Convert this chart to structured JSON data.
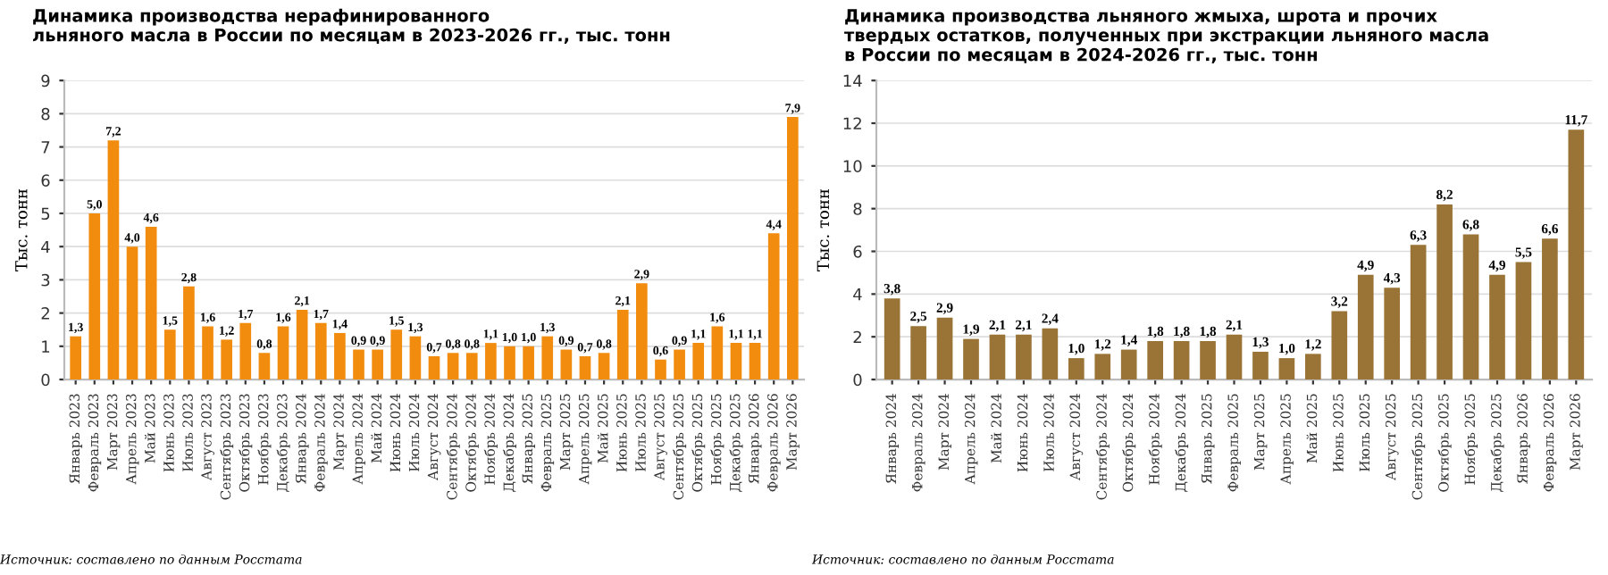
{
  "chart_data": [
    {
      "type": "bar",
      "title": "Динамика производства нерафинированного\nльняного масла в России по месяцам в 2023-2026 гг., тыс. тонн",
      "ylabel": "Тыс. тонн",
      "categories": [
        "Январь 2023",
        "Февраль 2023",
        "Март 2023",
        "Апрель 2023",
        "Май 2023",
        "Июнь 2023",
        "Июль 2023",
        "Август 2023",
        "Сентябрь 2023",
        "Октябрь 2023",
        "Ноябрь 2023",
        "Декабрь 2023",
        "Январь 2024",
        "Февраль 2024",
        "Март 2024",
        "Апрель 2024",
        "Май 2024",
        "Июнь 2024",
        "Июль 2024",
        "Август 2024",
        "Сентябрь 2024",
        "Октябрь 2024",
        "Ноябрь 2024",
        "Декабрь 2024",
        "Январь 2025",
        "Февраль 2025",
        "Март 2025",
        "Апрель 2025",
        "Май 2025",
        "Июнь 2025",
        "Июль 2025",
        "Август 2025",
        "Сентябрь 2025",
        "Октябрь 2025",
        "Ноябрь 2025",
        "Декабрь 2025",
        "Январь 2026",
        "Февраль 2026",
        "Март 2026"
      ],
      "values": [
        1.3,
        5.0,
        7.2,
        4.0,
        4.6,
        1.5,
        2.8,
        1.6,
        1.2,
        1.7,
        0.8,
        1.6,
        2.1,
        1.7,
        1.4,
        0.9,
        0.9,
        1.5,
        1.3,
        0.7,
        0.8,
        0.8,
        1.1,
        1.0,
        1.0,
        1.3,
        0.9,
        0.7,
        0.8,
        2.1,
        2.9,
        0.6,
        0.9,
        1.1,
        1.6,
        1.1,
        1.1,
        4.4,
        7.9
      ],
      "value_labels": [
        "1,3",
        "5,0",
        "7,2",
        "4,0",
        "4,6",
        "1,5",
        "2,8",
        "1,6",
        "1,2",
        "1,7",
        "0,8",
        "1,6",
        "2,1",
        "1,7",
        "1,4",
        "0,9",
        "0,9",
        "1,5",
        "1,3",
        "0,7",
        "0,8",
        "0,8",
        "1,1",
        "1,0",
        "1,0",
        "1,3",
        "0,9",
        "0,7",
        "0,8",
        "2,1",
        "2,9",
        "0,6",
        "0,9",
        "1,1",
        "1,6",
        "1,1",
        "1,1",
        "4,4",
        "7,9"
      ],
      "color": "#f28c0f",
      "ylim": [
        0,
        9
      ],
      "yticks": [
        0,
        1,
        2,
        3,
        4,
        5,
        6,
        7,
        8,
        9
      ],
      "grid": "y",
      "annotations": [
        "Источник: составлено по данным Росстата"
      ]
    },
    {
      "type": "bar",
      "title": "Динамика производства льняного жмыха, шрота и прочих\nтвердых остатков, полученных при экстракции льняного масла\nв России по месяцам в 2024-2026 гг., тыс. тонн",
      "ylabel": "Тыс. тонн",
      "categories": [
        "Январь 2024",
        "Февраль 2024",
        "Март 2024",
        "Апрель 2024",
        "Май 2024",
        "Июнь 2024",
        "Июль 2024",
        "Август 2024",
        "Сентябрь 2024",
        "Октябрь 2024",
        "Ноябрь 2024",
        "Декабрь 2024",
        "Январь 2025",
        "Февраль 2025",
        "Март 2025",
        "Апрель 2025",
        "Май 2025",
        "Июнь 2025",
        "Июль 2025",
        "Август 2025",
        "Сентябрь 2025",
        "Октябрь 2025",
        "Ноябрь 2025",
        "Декабрь 2025",
        "Январь 2026",
        "Февраль 2026",
        "Март 2026"
      ],
      "values": [
        3.8,
        2.5,
        2.9,
        1.9,
        2.1,
        2.1,
        2.4,
        1.0,
        1.2,
        1.4,
        1.8,
        1.8,
        1.8,
        2.1,
        1.3,
        1.0,
        1.2,
        3.2,
        4.9,
        4.3,
        6.3,
        8.2,
        6.8,
        4.9,
        5.5,
        6.6,
        11.7
      ],
      "value_labels": [
        "3,8",
        "2,5",
        "2,9",
        "1,9",
        "2,1",
        "2,1",
        "2,4",
        "1,0",
        "1,2",
        "1,4",
        "1,8",
        "1,8",
        "1,8",
        "2,1",
        "1,3",
        "1,0",
        "1,2",
        "3,2",
        "4,9",
        "4,3",
        "6,3",
        "8,2",
        "6,8",
        "4,9",
        "5,5",
        "6,6",
        "11,7"
      ],
      "color": "#9a7436",
      "ylim": [
        0,
        14
      ],
      "yticks": [
        0,
        2,
        4,
        6,
        8,
        10,
        12,
        14
      ],
      "grid": "y",
      "annotations": [
        "Источник: составлено по данным Росстата"
      ]
    }
  ]
}
